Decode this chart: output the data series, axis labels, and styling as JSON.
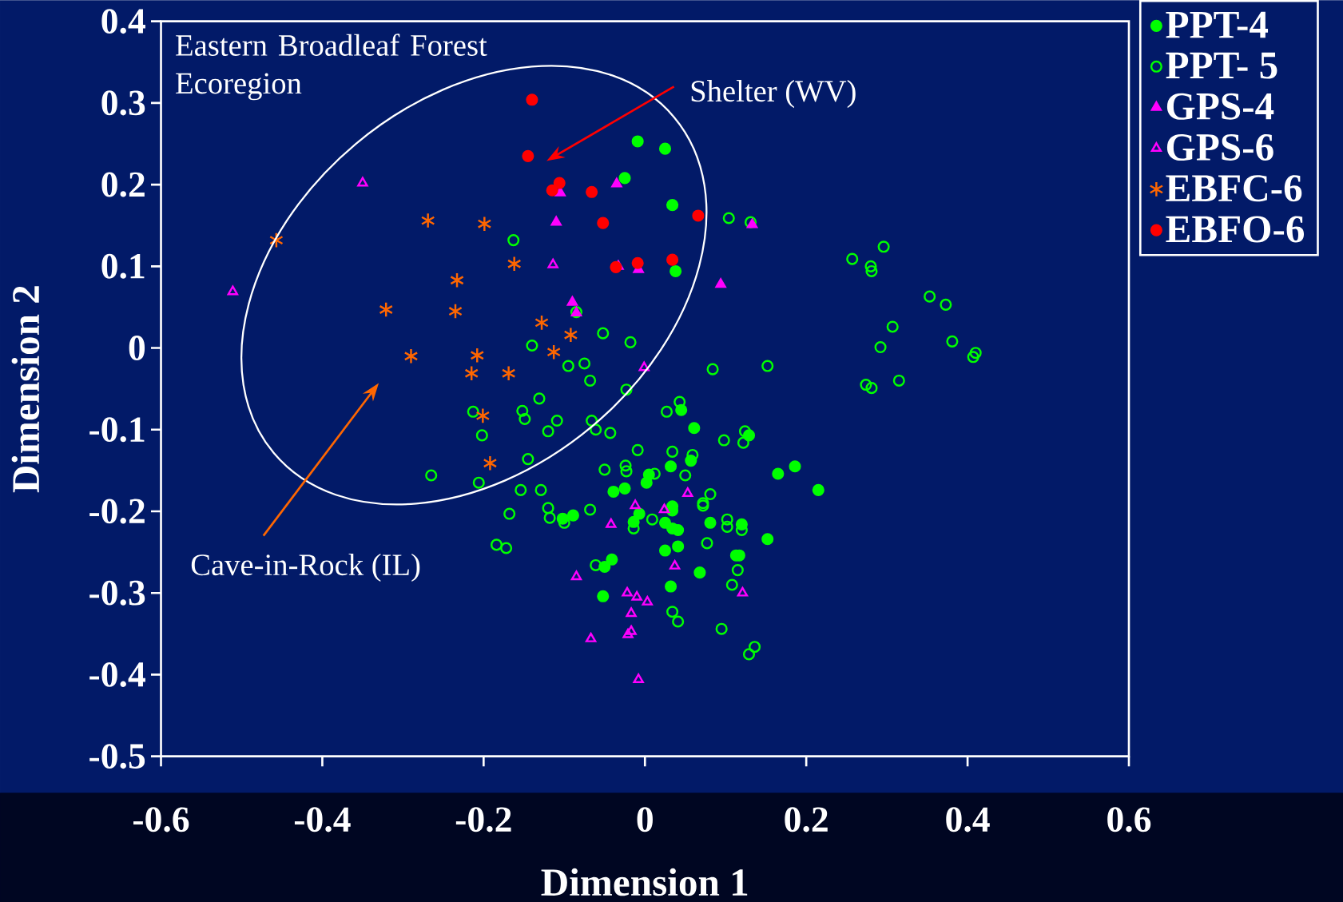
{
  "chart_data": {
    "type": "scatter",
    "xlabel": "Dimension 1",
    "ylabel": "Dimension 2",
    "xlim": [
      -0.6,
      0.6
    ],
    "ylim": [
      -0.5,
      0.4
    ],
    "xticks": [
      -0.6,
      -0.4,
      -0.2,
      0,
      0.2,
      0.4,
      0.6
    ],
    "yticks": [
      -0.5,
      -0.4,
      -0.3,
      -0.2,
      -0.1,
      0,
      0.1,
      0.2,
      0.3,
      0.4
    ],
    "legend": "top right",
    "annotations": [
      "Eastern Broadleaf Forest Ecoregion",
      "Shelter (WV)",
      "Cave-in-Rock (IL)"
    ],
    "series": [
      {
        "name": "PPT-4",
        "color": "#00ff00",
        "marker": "circle",
        "x": [
          -0.009,
          0.025,
          -0.025,
          0.034,
          0.038,
          0.045,
          0.061,
          0.129,
          0.032,
          0.057,
          0.165,
          0.186,
          0.005,
          0.002,
          -0.025,
          -0.039,
          0.034,
          0.034,
          -0.007,
          -0.089,
          -0.102,
          -0.014,
          0.025,
          0.034,
          0.041,
          0.081,
          0.12,
          0.152,
          0.025,
          0.041,
          0.113,
          0.117,
          -0.041,
          -0.05,
          0.068,
          0.032,
          -0.052,
          0.215
        ],
        "values": [
          0.253,
          0.244,
          0.208,
          0.175,
          0.094,
          -0.076,
          -0.098,
          -0.107,
          -0.145,
          -0.138,
          -0.154,
          -0.145,
          -0.155,
          -0.165,
          -0.172,
          -0.176,
          -0.194,
          -0.199,
          -0.203,
          -0.205,
          -0.209,
          -0.213,
          -0.214,
          -0.221,
          -0.223,
          -0.214,
          -0.216,
          -0.234,
          -0.248,
          -0.243,
          -0.254,
          -0.254,
          -0.259,
          -0.268,
          -0.275,
          -0.292,
          -0.304,
          -0.174
        ]
      },
      {
        "name": "PPT- 5",
        "color": "#00ff00",
        "marker": "circle",
        "x": [
          -0.095,
          -0.075,
          -0.068,
          0.084,
          0.152,
          -0.023,
          -0.131,
          -0.213,
          -0.152,
          -0.149,
          -0.109,
          -0.066,
          -0.061,
          -0.043,
          -0.12,
          -0.202,
          0.043,
          0.027,
          0.124,
          0.098,
          0.122,
          -0.009,
          0.034,
          0.059,
          -0.145,
          -0.05,
          -0.024,
          -0.023,
          0.012,
          0.05,
          -0.206,
          -0.154,
          -0.129,
          0.081,
          0.072,
          0.072,
          -0.168,
          -0.12,
          -0.118,
          -0.1,
          -0.068,
          0.009,
          -0.014,
          0.102,
          0.102,
          0.12,
          0.077,
          -0.184,
          -0.172,
          -0.061,
          0.115,
          0.108,
          0.034,
          0.041,
          0.095,
          0.136,
          0.129,
          0.104,
          0.131,
          -0.163,
          -0.085,
          -0.052,
          -0.018,
          -0.14,
          -0.265,
          0.274,
          0.281,
          0.315,
          0.407,
          0.41,
          0.257,
          0.296,
          0.28,
          0.281,
          0.353,
          0.373,
          0.307,
          0.381,
          0.292
        ],
        "values": [
          -0.022,
          -0.019,
          -0.04,
          -0.026,
          -0.022,
          -0.051,
          -0.062,
          -0.078,
          -0.077,
          -0.087,
          -0.089,
          -0.089,
          -0.1,
          -0.104,
          -0.102,
          -0.107,
          -0.066,
          -0.078,
          -0.102,
          -0.113,
          -0.116,
          -0.125,
          -0.127,
          -0.131,
          -0.136,
          -0.149,
          -0.144,
          -0.151,
          -0.154,
          -0.156,
          -0.165,
          -0.174,
          -0.174,
          -0.179,
          -0.19,
          -0.193,
          -0.203,
          -0.196,
          -0.208,
          -0.214,
          -0.198,
          -0.21,
          -0.221,
          -0.21,
          -0.219,
          -0.223,
          -0.239,
          -0.241,
          -0.245,
          -0.266,
          -0.272,
          -0.29,
          -0.323,
          -0.335,
          -0.344,
          -0.366,
          -0.375,
          0.159,
          0.154,
          0.132,
          0.044,
          0.018,
          0.007,
          0.003,
          -0.156,
          -0.045,
          -0.049,
          -0.04,
          -0.011,
          -0.006,
          0.109,
          0.124,
          0.1,
          0.094,
          0.063,
          0.053,
          0.026,
          0.008,
          0.001
        ]
      },
      {
        "name": "GPS-4",
        "color": "#ff00ff",
        "marker": "triangle",
        "x": [
          -0.105,
          -0.035,
          -0.11,
          0.133,
          -0.033,
          -0.008,
          0.094,
          -0.09,
          -0.085
        ],
        "values": [
          0.19,
          0.201,
          0.154,
          0.151,
          0.1,
          0.096,
          0.078,
          0.056,
          0.043
        ]
      },
      {
        "name": "GPS-6",
        "color": "#ff00ff",
        "marker": "triangle",
        "x": [
          -0.001,
          0.053,
          -0.012,
          0.024,
          -0.042,
          0.037,
          -0.085,
          0.121,
          -0.022,
          -0.01,
          0.003,
          -0.017,
          -0.017,
          -0.021,
          -0.067,
          -0.008,
          -0.114,
          -0.35,
          -0.511
        ],
        "values": [
          -0.024,
          -0.178,
          -0.193,
          -0.198,
          -0.216,
          -0.267,
          -0.28,
          -0.3,
          -0.3,
          -0.305,
          -0.311,
          -0.325,
          -0.347,
          -0.351,
          -0.356,
          -0.406,
          0.102,
          0.202,
          0.069
        ]
      },
      {
        "name": "EBFC-6",
        "color": "#ff6600",
        "marker": "cross",
        "x": [
          -0.457,
          -0.269,
          -0.199,
          -0.162,
          -0.233,
          -0.321,
          -0.235,
          -0.128,
          -0.092,
          -0.113,
          -0.29,
          -0.208,
          -0.215,
          -0.169,
          -0.201,
          -0.192
        ],
        "values": [
          0.132,
          0.156,
          0.152,
          0.103,
          0.083,
          0.047,
          0.045,
          0.031,
          0.016,
          -0.005,
          -0.01,
          -0.009,
          -0.031,
          -0.031,
          -0.083,
          -0.141
        ]
      },
      {
        "name": "EBFO-6",
        "color": "#ff0000",
        "marker": "circle",
        "x": [
          -0.14,
          -0.145,
          -0.106,
          -0.115,
          -0.066,
          -0.052,
          0.066,
          -0.036,
          -0.009,
          0.034
        ],
        "values": [
          0.304,
          0.235,
          0.202,
          0.193,
          0.191,
          0.153,
          0.162,
          0.099,
          0.104,
          0.108
        ]
      }
    ]
  }
}
